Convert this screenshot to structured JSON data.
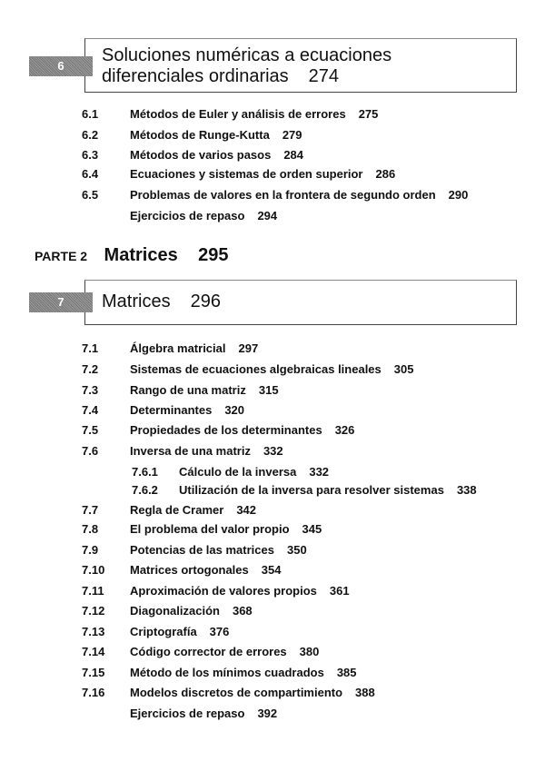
{
  "chapter6": {
    "number": "6",
    "title_line1": "Soluciones numéricas a ecuaciones",
    "title_line2": "diferenciales ordinarias",
    "page": "274",
    "entries": [
      {
        "num": "6.1",
        "title": "Métodos de Euler y análisis de errores",
        "page": "275"
      },
      {
        "num": "6.2",
        "title": "Métodos de Runge-Kutta",
        "page": "279"
      },
      {
        "num": "6.3",
        "title": "Métodos de varios pasos",
        "page": "284"
      },
      {
        "num": "6.4",
        "title": "Ecuaciones y sistemas de orden superior",
        "page": "286"
      },
      {
        "num": "6.5",
        "title": "Problemas de valores en la frontera de segundo orden",
        "page": "290"
      },
      {
        "num": "",
        "title": "Ejercicios de repaso",
        "page": "294"
      }
    ]
  },
  "part2": {
    "label": "PARTE 2",
    "title": "Matrices",
    "page": "295"
  },
  "chapter7": {
    "number": "7",
    "title": "Matrices",
    "page": "296",
    "entries": [
      {
        "num": "7.1",
        "title": "Álgebra matricial",
        "page": "297"
      },
      {
        "num": "7.2",
        "title": "Sistemas de ecuaciones algebraicas lineales",
        "page": "305"
      },
      {
        "num": "7.3",
        "title": "Rango de una matriz",
        "page": "315"
      },
      {
        "num": "7.4",
        "title": "Determinantes",
        "page": "320"
      },
      {
        "num": "7.5",
        "title": "Propiedades de los determinantes",
        "page": "326"
      },
      {
        "num": "7.6",
        "title": "Inversa de una matriz",
        "page": "332"
      },
      {
        "num": "7.6.1",
        "title": "Cálculo de la inversa",
        "page": "332",
        "sub": true
      },
      {
        "num": "7.6.2",
        "title": "Utilización de la inversa para resolver sistemas",
        "page": "338",
        "sub": true
      },
      {
        "num": "7.7",
        "title": "Regla de Cramer",
        "page": "342"
      },
      {
        "num": "7.8",
        "title": "El problema del valor propio",
        "page": "345"
      },
      {
        "num": "7.9",
        "title": "Potencias de las matrices",
        "page": "350"
      },
      {
        "num": "7.10",
        "title": "Matrices ortogonales",
        "page": "354"
      },
      {
        "num": "7.11",
        "title": "Aproximación de valores propios",
        "page": "361"
      },
      {
        "num": "7.12",
        "title": "Diagonalización",
        "page": "368"
      },
      {
        "num": "7.13",
        "title": "Criptografía",
        "page": "376"
      },
      {
        "num": "7.14",
        "title": "Código corrector de errores",
        "page": "380"
      },
      {
        "num": "7.15",
        "title": "Método de los mínimos cuadrados",
        "page": "385"
      },
      {
        "num": "7.16",
        "title": "Modelos discretos de compartimiento",
        "page": "388"
      },
      {
        "num": "",
        "title": "Ejercicios de repaso",
        "page": "392"
      }
    ]
  }
}
